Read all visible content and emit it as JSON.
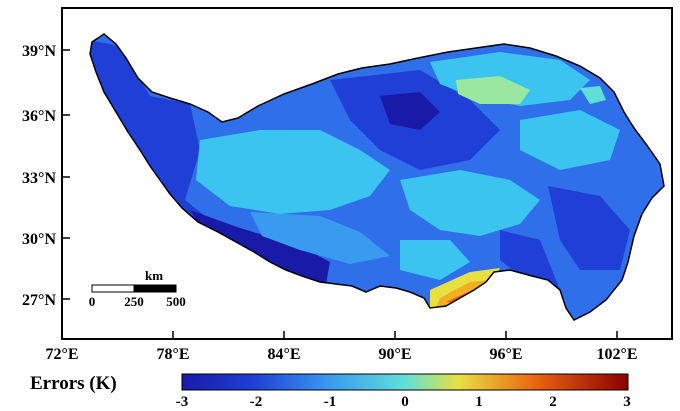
{
  "map": {
    "lat_ticks": [
      "39°N",
      "36°N",
      "33°N",
      "30°N",
      "27°N"
    ],
    "lon_ticks": [
      "72°E",
      "78°E",
      "84°E",
      "90°E",
      "96°E",
      "102°E"
    ]
  },
  "scale_bar": {
    "unit": "km",
    "labels": [
      "0",
      "250",
      "500"
    ]
  },
  "colorbar": {
    "title": "Errors (K)",
    "ticks": [
      "-3",
      "-2",
      "-1",
      "0",
      "1",
      "2",
      "3"
    ],
    "colors": [
      "#1a1aa8",
      "#1f3fd6",
      "#2f6fea",
      "#3a9af0",
      "#3cc4f0",
      "#5ee0d8",
      "#9ae8a0",
      "#e8e040",
      "#f0b020",
      "#e86010",
      "#c01010"
    ]
  }
}
